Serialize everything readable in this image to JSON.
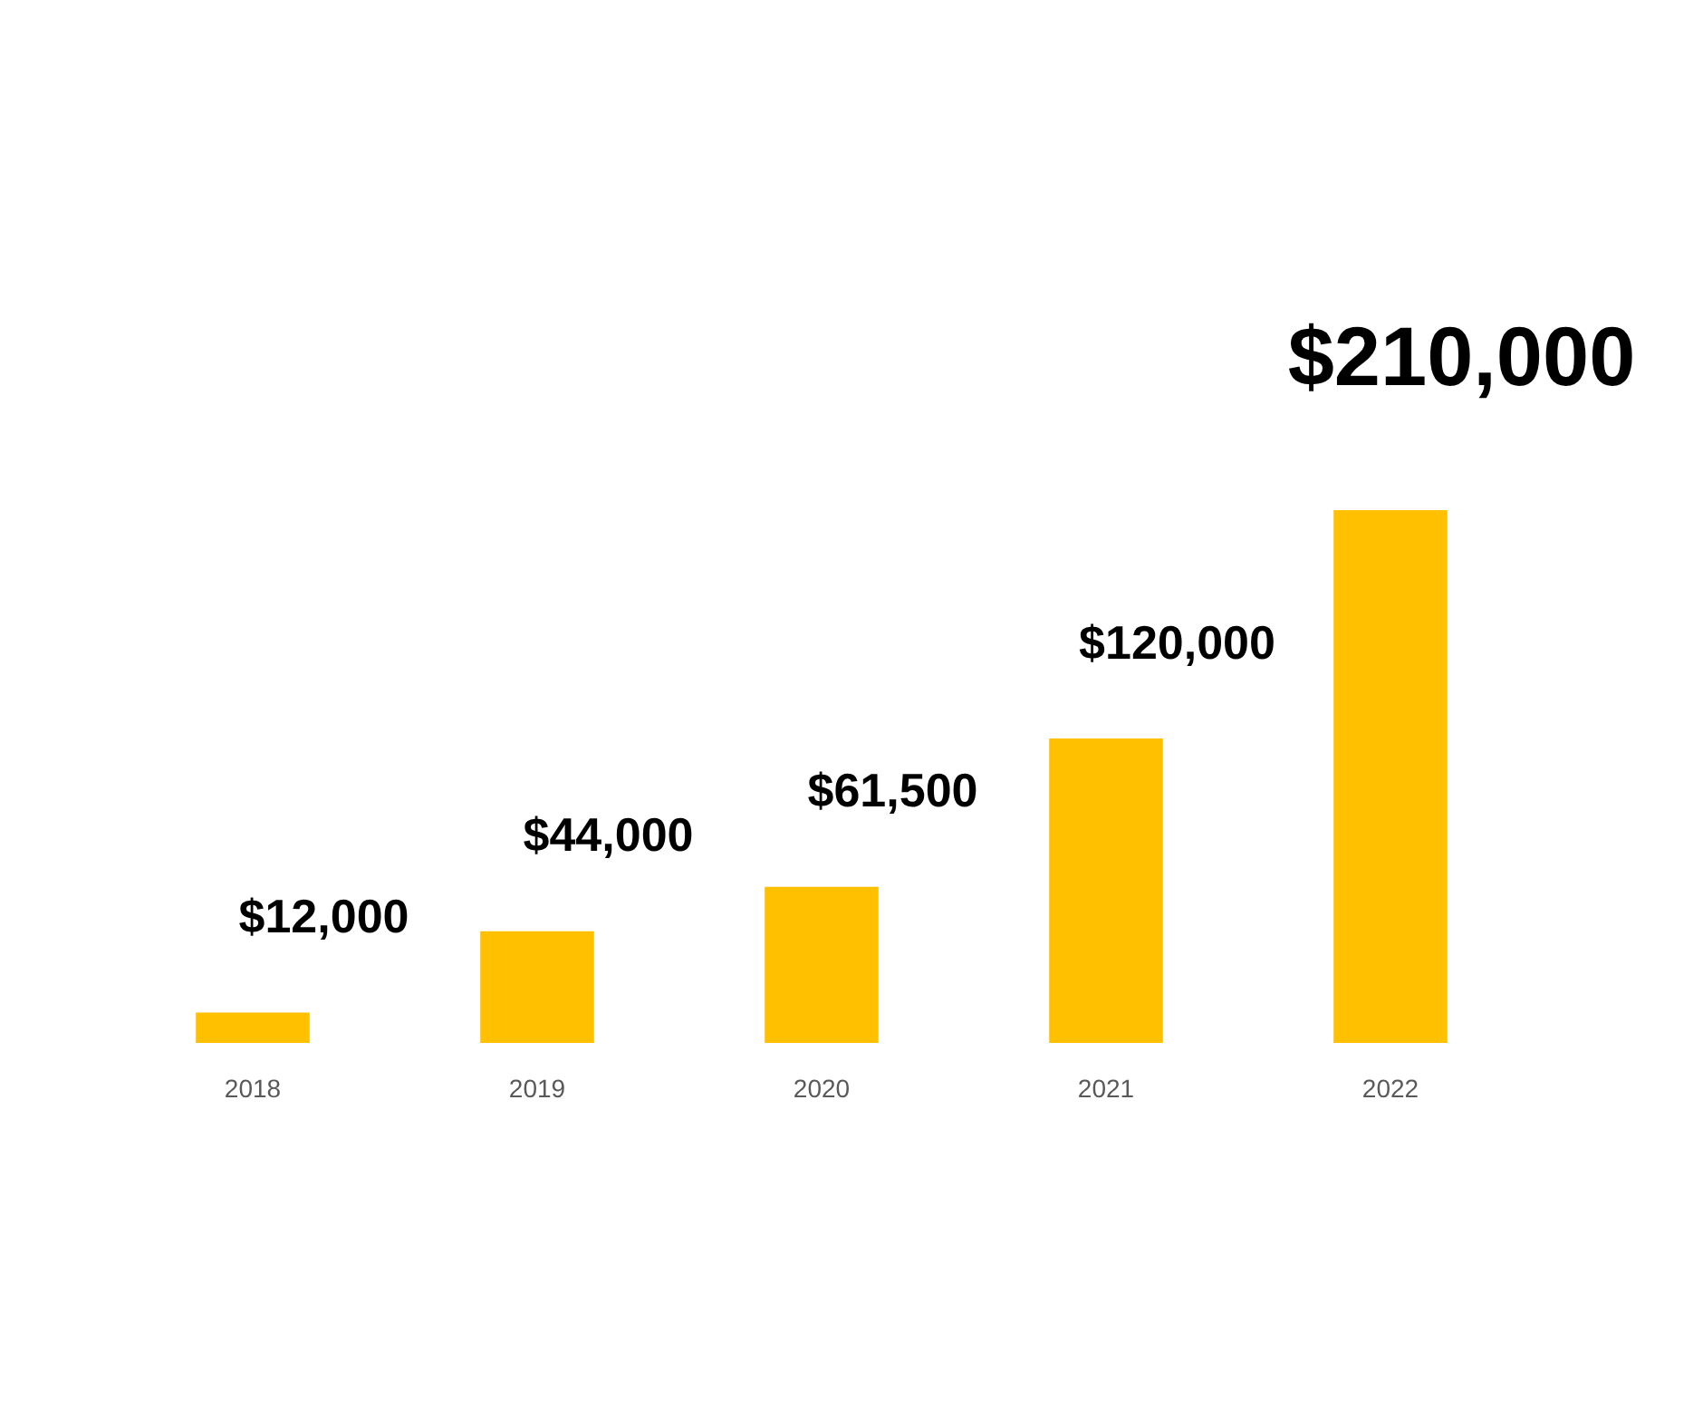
{
  "chart_data": {
    "type": "bar",
    "categories": [
      "2018",
      "2019",
      "2020",
      "2021",
      "2022"
    ],
    "values": [
      12000,
      44000,
      61500,
      120000,
      210000
    ],
    "value_labels": [
      "$12,000",
      "$44,000",
      "$61,500",
      "$120,000",
      "$210,000"
    ],
    "color": "#ffc000"
  }
}
